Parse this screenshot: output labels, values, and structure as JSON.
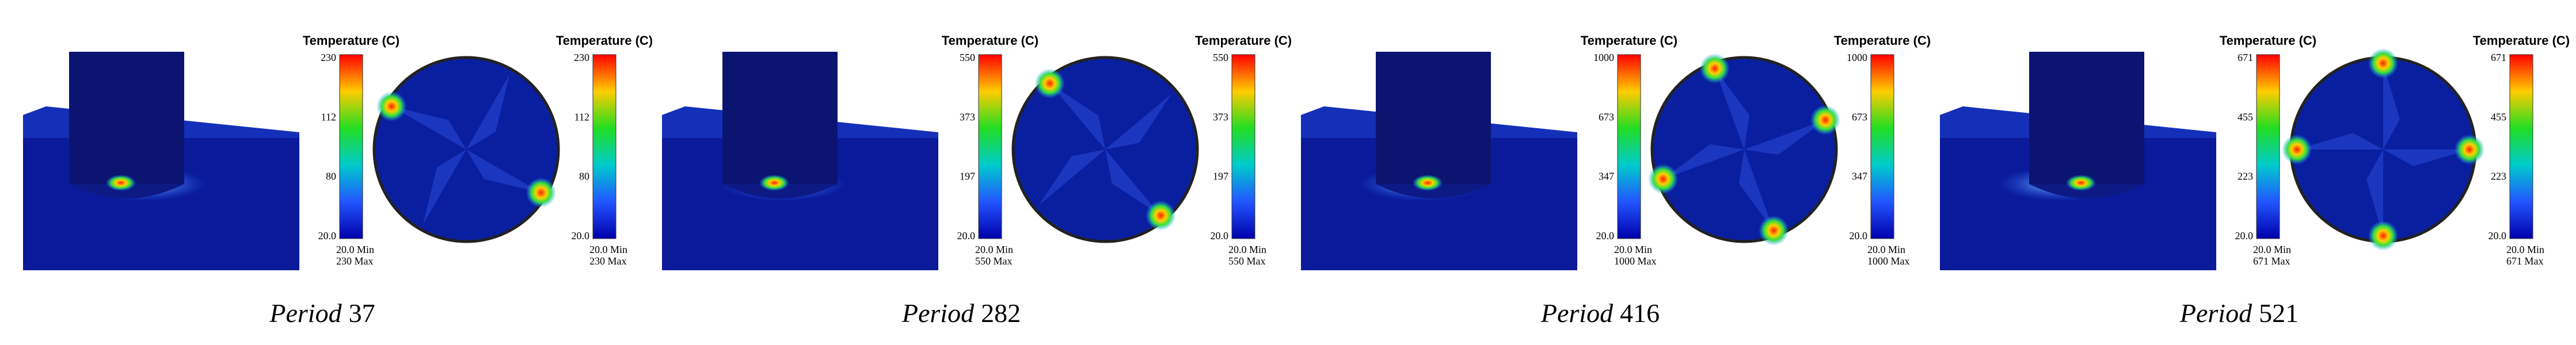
{
  "panels": [
    {
      "legend": {
        "title": "Temperature (C)",
        "ticks": [
          "230",
          "112",
          "80",
          "20.0"
        ],
        "min": "20.0 Min",
        "max": "230 Max"
      },
      "caption": {
        "label": "Period",
        "number": "37"
      }
    },
    {
      "legend": {
        "title": "Temperature (C)",
        "ticks": [
          "550",
          "373",
          "197",
          "20.0"
        ],
        "min": "20.0 Min",
        "max": "550 Max"
      },
      "caption": {
        "label": "Period",
        "number": "282"
      }
    },
    {
      "legend": {
        "title": "Temperature (C)",
        "ticks": [
          "1000",
          "673",
          "347",
          "20.0"
        ],
        "min": "20.0 Min",
        "max": "1000 Max"
      },
      "caption": {
        "label": "Period",
        "number": "416"
      }
    },
    {
      "legend": {
        "title": "Temperature (C)",
        "ticks": [
          "671",
          "455",
          "223",
          "20.0"
        ],
        "min": "20.0 Min",
        "max": "671 Max"
      },
      "caption": {
        "label": "Period",
        "number": "521"
      }
    }
  ]
}
